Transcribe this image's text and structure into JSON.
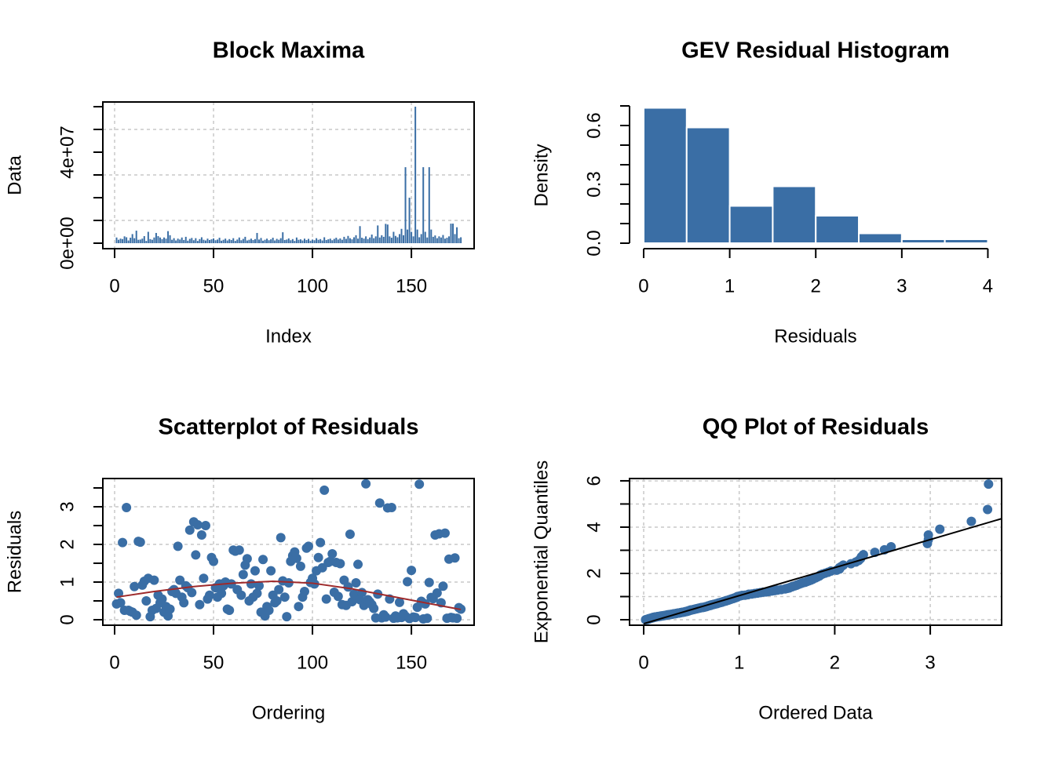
{
  "chart_data": [
    {
      "type": "bar",
      "title": "Block Maxima",
      "xlabel": "Index",
      "ylabel": "Data",
      "color": "#3a6ea5",
      "box": true,
      "xlim": [
        -5.95,
        181.7
      ],
      "ylim": [
        -2410000,
        62070000
      ],
      "xticks": [
        0,
        50,
        100,
        150
      ],
      "yticks": [
        {
          "value": 0,
          "label": "0e+00"
        },
        {
          "value": 40000000,
          "label": "4e+07"
        }
      ],
      "yminor": [
        10000000,
        20000000,
        30000000,
        50000000,
        60000000
      ],
      "xgrid": [
        0,
        50,
        100,
        150
      ],
      "ygrid": [
        10000000,
        30000000,
        50000000
      ],
      "x": [
        1,
        2,
        3,
        4,
        5,
        6,
        7,
        8,
        9,
        10,
        11,
        12,
        13,
        14,
        15,
        16,
        17,
        18,
        19,
        20,
        21,
        22,
        23,
        24,
        25,
        26,
        27,
        28,
        29,
        30,
        31,
        32,
        33,
        34,
        35,
        36,
        37,
        38,
        39,
        40,
        41,
        42,
        43,
        44,
        45,
        46,
        47,
        48,
        49,
        50,
        51,
        52,
        53,
        54,
        55,
        56,
        57,
        58,
        59,
        60,
        61,
        62,
        63,
        64,
        65,
        66,
        67,
        68,
        69,
        70,
        71,
        72,
        73,
        74,
        75,
        76,
        77,
        78,
        79,
        80,
        81,
        82,
        83,
        84,
        85,
        86,
        87,
        88,
        89,
        90,
        91,
        92,
        93,
        94,
        95,
        96,
        97,
        98,
        99,
        100,
        101,
        102,
        103,
        104,
        105,
        106,
        107,
        108,
        109,
        110,
        111,
        112,
        113,
        114,
        115,
        116,
        117,
        118,
        119,
        120,
        121,
        122,
        123,
        124,
        125,
        126,
        127,
        128,
        129,
        130,
        131,
        132,
        133,
        134,
        135,
        136,
        137,
        138,
        139,
        140,
        141,
        142,
        143,
        144,
        145,
        146,
        147,
        148,
        149,
        150,
        151,
        152,
        153,
        154,
        155,
        156,
        157,
        158,
        159,
        160,
        161,
        162,
        163,
        164,
        165,
        166,
        167,
        168,
        169,
        170,
        171,
        172,
        173,
        174,
        175
      ],
      "values": [
        2500000.0,
        1500000.0,
        2000000.0,
        1800000.0,
        3000000.0,
        2600000.0,
        1200000.0,
        2400000.0,
        4000000.0,
        2200000.0,
        5500000.0,
        1500000.0,
        1600000.0,
        2000000.0,
        3100000.0,
        1000000.0,
        5000000.0,
        1800000.0,
        1500000.0,
        2500000.0,
        4500000.0,
        3100000.0,
        2500000.0,
        1800000.0,
        2500000.0,
        2000000.0,
        5300000.0,
        3500000.0,
        1500000.0,
        2200000.0,
        1200000.0,
        2000000.0,
        1600000.0,
        2500000.0,
        1400000.0,
        2800000.0,
        1100000.0,
        1900000.0,
        2300000.0,
        1300000.0,
        2200000.0,
        1000000.0,
        1800000.0,
        2600000.0,
        1500000.0,
        1200000.0,
        2000000.0,
        1400000.0,
        1700000.0,
        2100000.0,
        1300000.0,
        1600000.0,
        2400000.0,
        1100000.0,
        1500000.0,
        2000000.0,
        1200000.0,
        1800000.0,
        1400000.0,
        2200000.0,
        1000000.0,
        1600000.0,
        2500000.0,
        1300000.0,
        1900000.0,
        2800000.0,
        1200000.0,
        1500000.0,
        2000000.0,
        1400000.0,
        1800000.0,
        4500000.0,
        1600000.0,
        2300000.0,
        1100000.0,
        1500000.0,
        2000000.0,
        1300000.0,
        1700000.0,
        2400000.0,
        1200000.0,
        1900000.0,
        1500000.0,
        2200000.0,
        4800000.0,
        1400000.0,
        1600000.0,
        2100000.0,
        1300000.0,
        1800000.0,
        1000000.0,
        2500000.0,
        1500000.0,
        1700000.0,
        1200000.0,
        2000000.0,
        1400000.0,
        1900000.0,
        1100000.0,
        1600000.0,
        1300000.0,
        2200000.0,
        1500000.0,
        1800000.0,
        1200000.0,
        2600000.0,
        1400000.0,
        1700000.0,
        2000000.0,
        1300000.0,
        1900000.0,
        2400000.0,
        1600000.0,
        2100000.0,
        1500000.0,
        2800000.0,
        1900000.0,
        3200000.0,
        2200000.0,
        1700000.0,
        2600000.0,
        3500000.0,
        2000000.0,
        7500000.0,
        2400000.0,
        2000000.0,
        3000000.0,
        1800000.0,
        2500000.0,
        3800000.0,
        2200000.0,
        3000000.0,
        7800000.0,
        2500000.0,
        3500000.0,
        2800000.0,
        8500000.0,
        8200000.0,
        3000000.0,
        2400000.0,
        5000000.0,
        3200000.0,
        2600000.0,
        4000000.0,
        6300000.0,
        3500000.0,
        33400000.0,
        6000000.0,
        20000000.0,
        5000000.0,
        3000000.0,
        60000000.0,
        6000000.0,
        2600000.0,
        4000000.0,
        33400000.0,
        5000000.0,
        2500000.0,
        33400000.0,
        6000000.0,
        2800000.0,
        3400000.0,
        2200000.0,
        3000000.0,
        2500000.0,
        3600000.0,
        2000000.0,
        2400000.0,
        3000000.0,
        8600000.0,
        8600000.0,
        4000000.0,
        7000000.0,
        2200000.0,
        2600000.0
      ]
    },
    {
      "type": "histogram",
      "title": "GEV Residual Histogram",
      "xlabel": "Residuals",
      "ylabel": "Density",
      "color": "#3a6ea5",
      "box": false,
      "xlim": [
        -0.164,
        4.16
      ],
      "ylim": [
        -0.028,
        0.72
      ],
      "xticks": [
        0,
        1,
        2,
        3,
        4
      ],
      "yticks": [
        {
          "value": 0,
          "label": "0.0"
        },
        0.3,
        0.6
      ],
      "yminor": [
        0.1,
        0.2,
        0.4,
        0.5,
        0.7
      ],
      "bins": [
        0,
        0.5,
        1,
        1.5,
        2,
        2.5,
        3,
        3.5,
        4
      ],
      "values": [
        0.69,
        0.59,
        0.19,
        0.29,
        0.14,
        0.05,
        0.02,
        0.02
      ]
    },
    {
      "type": "scatter",
      "title": "Scatterplot of Residuals",
      "xlabel": "Ordering",
      "ylabel": "Residuals",
      "color": "#3a6ea5",
      "box": true,
      "xlim": [
        -5.95,
        181.7
      ],
      "ylim": [
        -0.146,
        3.75
      ],
      "xticks": [
        0,
        50,
        100,
        150
      ],
      "yticks": [
        0,
        1,
        2,
        3
      ],
      "yminor": [
        0.5,
        1.5,
        2.5,
        3.5
      ],
      "xgrid": [
        0,
        50,
        100,
        150
      ],
      "ygrid": [
        0,
        1,
        2,
        3
      ],
      "x": [
        1,
        2,
        3,
        4,
        5,
        6,
        7,
        8,
        9,
        10,
        11,
        12,
        13,
        14,
        15,
        16,
        17,
        18,
        19,
        20,
        21,
        22,
        23,
        24,
        25,
        26,
        27,
        28,
        29,
        30,
        31,
        32,
        33,
        34,
        35,
        36,
        37,
        38,
        39,
        40,
        41,
        42,
        43,
        44,
        45,
        46,
        47,
        48,
        49,
        50,
        51,
        52,
        53,
        54,
        55,
        56,
        57,
        58,
        59,
        60,
        61,
        62,
        63,
        64,
        65,
        66,
        67,
        68,
        69,
        70,
        71,
        72,
        73,
        74,
        75,
        76,
        77,
        78,
        79,
        80,
        81,
        82,
        83,
        84,
        85,
        86,
        87,
        88,
        89,
        90,
        91,
        92,
        93,
        94,
        95,
        96,
        97,
        98,
        99,
        100,
        101,
        102,
        103,
        104,
        105,
        106,
        107,
        108,
        109,
        110,
        111,
        112,
        113,
        114,
        115,
        116,
        117,
        118,
        119,
        120,
        121,
        122,
        123,
        124,
        125,
        126,
        127,
        128,
        129,
        130,
        131,
        132,
        133,
        134,
        135,
        136,
        137,
        138,
        139,
        140,
        141,
        142,
        143,
        144,
        145,
        146,
        147,
        148,
        149,
        150,
        151,
        152,
        153,
        154,
        155,
        156,
        157,
        158,
        159,
        160,
        161,
        162,
        163,
        164,
        165,
        166,
        167,
        168,
        169,
        170,
        171,
        172,
        173,
        174,
        175
      ],
      "values": [
        0.42,
        0.7,
        0.45,
        2.05,
        0.25,
        2.98,
        0.25,
        0.22,
        0.2,
        0.88,
        0.12,
        2.08,
        2.06,
        0.92,
        1.02,
        0.5,
        1.1,
        0.08,
        0.25,
        1.05,
        0.3,
        0.65,
        0.45,
        0.55,
        0.2,
        0.35,
        0.1,
        0.28,
        0.75,
        0.8,
        0.7,
        1.95,
        1.05,
        0.6,
        0.45,
        0.9,
        0.85,
        2.38,
        0.72,
        2.6,
        1.72,
        2.52,
        0.4,
        2.25,
        1.1,
        2.5,
        0.55,
        0.65,
        1.65,
        1.55,
        0.85,
        0.6,
        0.95,
        0.7,
        0.9,
        1.0,
        0.28,
        0.25,
        0.95,
        1.85,
        1.82,
        0.8,
        1.85,
        0.65,
        1.2,
        1.45,
        1.62,
        0.5,
        0.95,
        0.6,
        1.3,
        0.7,
        0.9,
        0.2,
        1.6,
        0.1,
        0.35,
        0.25,
        1.3,
        0.65,
        0.45,
        0.5,
        0.8,
        2.18,
        1.03,
        0.6,
        0.08,
        0.98,
        1.55,
        1.7,
        1.8,
        1.63,
        0.35,
        1.42,
        0.6,
        0.75,
        1.9,
        1.95,
        0.99,
        1.1,
        0.95,
        1.3,
        1.65,
        2.05,
        1.38,
        3.44,
        0.55,
        1.52,
        1.55,
        1.75,
        0.73,
        1.52,
        0.62,
        1.49,
        0.4,
        1.05,
        0.38,
        0.87,
        2.27,
        0.48,
        0.68,
        0.98,
        1.47,
        0.53,
        0.72,
        0.38,
        3.61,
        0.53,
        0.47,
        0.4,
        0.3,
        0.05,
        0.68,
        3.1,
        0.05,
        0.13,
        0.07,
        2.97,
        0.55,
        2.98,
        0.04,
        0.1,
        0.05,
        0.46,
        0.06,
        0.16,
        0.09,
        1.01,
        0.03,
        1.31,
        0.07,
        0.06,
        0.33,
        3.6,
        0.49,
        0.02,
        0.42,
        0.04,
        0.99,
        0.59,
        0.56,
        2.25,
        0.71,
        2.28,
        0.45,
        0.89,
        2.3,
        0.04,
        1.61,
        0.06,
        0.05,
        1.64,
        0.04,
        0.32,
        0.28
      ],
      "line": {
        "color": "#9e2a2b",
        "x": [
          1,
          20,
          40,
          60,
          80,
          100,
          120,
          140,
          160,
          175
        ],
        "values": [
          0.6,
          0.75,
          0.88,
          0.97,
          1.02,
          0.97,
          0.82,
          0.62,
          0.42,
          0.27
        ]
      }
    },
    {
      "type": "scatter",
      "title": "QQ Plot of Residuals",
      "xlabel": "Ordered Data",
      "ylabel": "Exponential Quantiles",
      "color": "#3a6ea5",
      "box": true,
      "xlim": [
        -0.148,
        3.747
      ],
      "ylim": [
        -0.237,
        6.1
      ],
      "xticks": [
        0,
        1,
        2,
        3
      ],
      "yticks": [
        0,
        2,
        4,
        6
      ],
      "yminor": [
        1,
        3,
        5
      ],
      "xgrid": [
        0,
        1,
        2,
        3
      ],
      "ygrid": [
        0,
        1,
        2,
        3,
        4,
        5,
        6
      ],
      "x": [
        0.02,
        0.03,
        0.04,
        0.04,
        0.05,
        0.05,
        0.05,
        0.06,
        0.06,
        0.07,
        0.07,
        0.08,
        0.08,
        0.09,
        0.09,
        0.1,
        0.1,
        0.11,
        0.12,
        0.12,
        0.13,
        0.14,
        0.15,
        0.16,
        0.17,
        0.18,
        0.19,
        0.2,
        0.21,
        0.22,
        0.23,
        0.24,
        0.25,
        0.26,
        0.27,
        0.28,
        0.29,
        0.3,
        0.31,
        0.32,
        0.33,
        0.34,
        0.35,
        0.36,
        0.37,
        0.38,
        0.39,
        0.4,
        0.41,
        0.42,
        0.43,
        0.44,
        0.45,
        0.45,
        0.46,
        0.47,
        0.47,
        0.48,
        0.49,
        0.49,
        0.5,
        0.51,
        0.52,
        0.53,
        0.54,
        0.55,
        0.56,
        0.57,
        0.58,
        0.59,
        0.6,
        0.61,
        0.62,
        0.63,
        0.64,
        0.65,
        0.66,
        0.67,
        0.68,
        0.69,
        0.7,
        0.7,
        0.71,
        0.72,
        0.73,
        0.74,
        0.75,
        0.76,
        0.77,
        0.78,
        0.79,
        0.8,
        0.81,
        0.82,
        0.83,
        0.84,
        0.85,
        0.86,
        0.87,
        0.88,
        0.89,
        0.9,
        0.91,
        0.92,
        0.93,
        0.94,
        0.95,
        0.96,
        0.97,
        0.98,
        0.98,
        0.99,
        1.01,
        1.03,
        1.06,
        1.09,
        1.1,
        1.13,
        1.16,
        1.19,
        1.22,
        1.25,
        1.28,
        1.31,
        1.34,
        1.37,
        1.4,
        1.44,
        1.48,
        1.5,
        1.52,
        1.53,
        1.55,
        1.56,
        1.58,
        1.6,
        1.61,
        1.63,
        1.65,
        1.67,
        1.69,
        1.71,
        1.73,
        1.75,
        1.77,
        1.78,
        1.8,
        1.82,
        1.84,
        1.85,
        1.87,
        1.9,
        1.93,
        1.96,
        2.02,
        2.05,
        2.05,
        2.07,
        2.09,
        2.17,
        2.22,
        2.25,
        2.27,
        2.28,
        2.3,
        2.42,
        2.52,
        2.59,
        2.97,
        2.98,
        2.98,
        3.1,
        3.43,
        3.6,
        3.61
      ],
      "values": [
        0.0,
        0.01,
        0.01,
        0.02,
        0.03,
        0.03,
        0.04,
        0.04,
        0.05,
        0.06,
        0.06,
        0.07,
        0.07,
        0.08,
        0.09,
        0.09,
        0.1,
        0.11,
        0.11,
        0.12,
        0.12,
        0.13,
        0.14,
        0.14,
        0.15,
        0.16,
        0.16,
        0.17,
        0.18,
        0.18,
        0.19,
        0.2,
        0.21,
        0.21,
        0.22,
        0.23,
        0.23,
        0.24,
        0.25,
        0.26,
        0.26,
        0.27,
        0.28,
        0.29,
        0.29,
        0.3,
        0.31,
        0.32,
        0.32,
        0.33,
        0.34,
        0.35,
        0.36,
        0.36,
        0.37,
        0.38,
        0.39,
        0.4,
        0.41,
        0.42,
        0.42,
        0.43,
        0.44,
        0.45,
        0.46,
        0.47,
        0.48,
        0.49,
        0.5,
        0.51,
        0.52,
        0.53,
        0.53,
        0.54,
        0.55,
        0.56,
        0.57,
        0.59,
        0.6,
        0.61,
        0.62,
        0.63,
        0.64,
        0.65,
        0.66,
        0.67,
        0.68,
        0.69,
        0.7,
        0.72,
        0.73,
        0.74,
        0.75,
        0.76,
        0.78,
        0.79,
        0.8,
        0.81,
        0.83,
        0.84,
        0.85,
        0.87,
        0.88,
        0.9,
        0.91,
        0.92,
        0.94,
        0.95,
        0.97,
        0.98,
        1.0,
        1.01,
        1.03,
        1.05,
        1.06,
        1.08,
        1.1,
        1.11,
        1.13,
        1.15,
        1.17,
        1.19,
        1.2,
        1.22,
        1.24,
        1.26,
        1.28,
        1.3,
        1.33,
        1.35,
        1.37,
        1.39,
        1.42,
        1.44,
        1.46,
        1.49,
        1.51,
        1.54,
        1.57,
        1.6,
        1.62,
        1.65,
        1.68,
        1.71,
        1.75,
        1.78,
        1.81,
        1.85,
        1.89,
        1.93,
        1.97,
        2.01,
        2.05,
        2.1,
        2.14,
        2.19,
        2.25,
        2.3,
        2.36,
        2.42,
        2.49,
        2.56,
        2.64,
        2.72,
        2.81,
        2.91,
        3.02,
        3.15,
        3.29,
        3.46,
        3.66,
        3.91,
        4.25,
        4.76,
        5.86
      ],
      "line": {
        "color": "#000000",
        "x": [
          0,
          3.75
        ],
        "values": [
          -0.17,
          4.37
        ]
      }
    }
  ]
}
